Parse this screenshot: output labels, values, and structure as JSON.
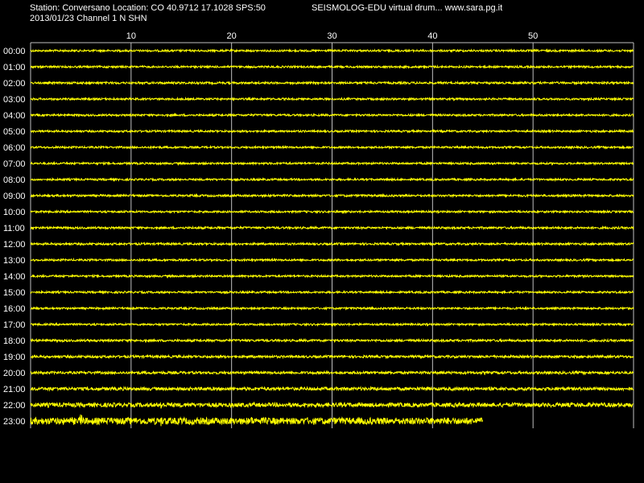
{
  "header": {
    "station_line": "Station: Conversano Location: CO 40.9712 17.1028 SPS:50",
    "app_line": "SEISMOLOG-EDU virtual drum... www.sara.pg.it",
    "date_channel_line": "2013/01/23  Channel 1 N SHN"
  },
  "chart_data": {
    "type": "line",
    "x_ticks": [
      10,
      20,
      30,
      40,
      50
    ],
    "x_range": [
      0,
      60
    ],
    "grid": true,
    "hours": [
      "00:00",
      "01:00",
      "02:00",
      "03:00",
      "04:00",
      "05:00",
      "06:00",
      "07:00",
      "08:00",
      "09:00",
      "10:00",
      "11:00",
      "12:00",
      "13:00",
      "14:00",
      "15:00",
      "16:00",
      "17:00",
      "18:00",
      "19:00",
      "20:00",
      "21:00",
      "22:00",
      "23:00"
    ],
    "last_row_end_minute": 45,
    "noise_level": [
      1.2,
      1.2,
      1.3,
      1.2,
      1.2,
      1.2,
      1.2,
      1.2,
      1.2,
      1.3,
      1.2,
      1.3,
      1.3,
      1.2,
      1.2,
      1.2,
      1.2,
      1.2,
      1.4,
      1.5,
      1.6,
      2.0,
      2.6,
      4.2
    ],
    "events": [
      {
        "hour": "20:00",
        "minute": 32.3,
        "amplitude": 4
      },
      {
        "hour": "22:00",
        "minute": 13,
        "amplitude": 8
      },
      {
        "hour": "23:00",
        "minute": 5,
        "amplitude": 12
      },
      {
        "hour": "23:00",
        "minute": 13,
        "amplitude": 8
      },
      {
        "hour": "23:00",
        "minute": 22,
        "amplitude": 7
      }
    ],
    "trace_color": "#ffff00",
    "grid_color": "#c0c0c0",
    "background_color": "#000000"
  }
}
